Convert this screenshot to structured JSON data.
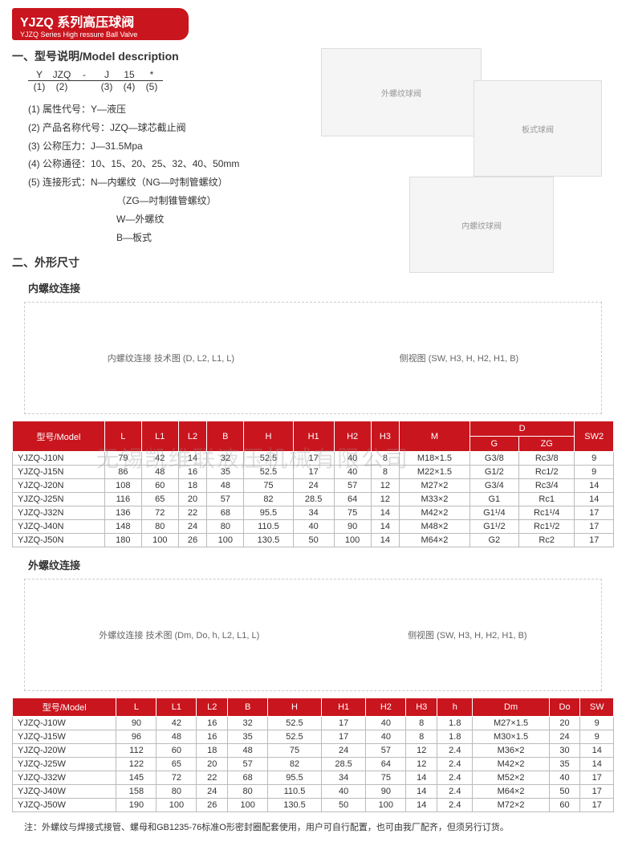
{
  "header": {
    "title_cn": "YJZQ 系列高压球阀",
    "title_en": "YJZQ Series High ressure Ball Valve"
  },
  "section1": {
    "title": "一、型号说明/Model description",
    "code_top": [
      "Y",
      "JZQ",
      "-",
      "J",
      "15",
      "*"
    ],
    "code_bot": [
      "(1)",
      "(2)",
      "",
      "(3)",
      "(4)",
      "(5)"
    ],
    "desc": [
      "(1) 属性代号：Y—液压",
      "(2) 产品名称代号：JZQ—球芯截止阀",
      "(3) 公称压力：J—31.5Mpa",
      "(4) 公称通径：10、15、20、25、32、40、50mm",
      "(5) 连接形式：N—内螺纹（NG—吋制管螺纹）"
    ],
    "desc_indent": [
      "（ZG—吋制锥管螺纹）",
      "W—外螺纹",
      "B—板式"
    ]
  },
  "section2": {
    "title": "二、外形尺寸",
    "sub1": "内螺纹连接",
    "sub2": "外螺纹连接"
  },
  "watermark": "无锡凯维联液压机械有限公司",
  "diagram_labels": {
    "d1": "内螺纹连接 技术图 (D, L2, L1, L)",
    "d2": "侧视图 (SW, H3, H, H2, H1, B)",
    "d3": "外螺纹连接 技术图 (Dm, Do, h, L2, L1, L)",
    "d4": "侧视图 (SW, H3, H, H2, H1, B)"
  },
  "table1": {
    "headers_top": [
      "型号/Model",
      "L",
      "L1",
      "L2",
      "B",
      "H",
      "H1",
      "H2",
      "H3",
      "M",
      "D",
      "SW2"
    ],
    "headers_sub_d": [
      "G",
      "ZG"
    ],
    "rows": [
      [
        "YJZQ-J10N",
        "79",
        "42",
        "14",
        "32",
        "52.5",
        "17",
        "40",
        "8",
        "M18×1.5",
        "G3/8",
        "Rc3/8",
        "9"
      ],
      [
        "YJZQ-J15N",
        "86",
        "48",
        "16",
        "35",
        "52.5",
        "17",
        "40",
        "8",
        "M22×1.5",
        "G1/2",
        "Rc1/2",
        "9"
      ],
      [
        "YJZQ-J20N",
        "108",
        "60",
        "18",
        "48",
        "75",
        "24",
        "57",
        "12",
        "M27×2",
        "G3/4",
        "Rc3/4",
        "14"
      ],
      [
        "YJZQ-J25N",
        "116",
        "65",
        "20",
        "57",
        "82",
        "28.5",
        "64",
        "12",
        "M33×2",
        "G1",
        "Rc1",
        "14"
      ],
      [
        "YJZQ-J32N",
        "136",
        "72",
        "22",
        "68",
        "95.5",
        "34",
        "75",
        "14",
        "M42×2",
        "G1¹/4",
        "Rc1¹/4",
        "17"
      ],
      [
        "YJZQ-J40N",
        "148",
        "80",
        "24",
        "80",
        "110.5",
        "40",
        "90",
        "14",
        "M48×2",
        "G1¹/2",
        "Rc1¹/2",
        "17"
      ],
      [
        "YJZQ-J50N",
        "180",
        "100",
        "26",
        "100",
        "130.5",
        "50",
        "100",
        "14",
        "M64×2",
        "G2",
        "Rc2",
        "17"
      ]
    ]
  },
  "table2": {
    "headers": [
      "型号/Model",
      "L",
      "L1",
      "L2",
      "B",
      "H",
      "H1",
      "H2",
      "H3",
      "h",
      "Dm",
      "Do",
      "SW"
    ],
    "rows": [
      [
        "YJZQ-J10W",
        "90",
        "42",
        "16",
        "32",
        "52.5",
        "17",
        "40",
        "8",
        "1.8",
        "M27×1.5",
        "20",
        "9"
      ],
      [
        "YJZQ-J15W",
        "96",
        "48",
        "16",
        "35",
        "52.5",
        "17",
        "40",
        "8",
        "1.8",
        "M30×1.5",
        "24",
        "9"
      ],
      [
        "YJZQ-J20W",
        "112",
        "60",
        "18",
        "48",
        "75",
        "24",
        "57",
        "12",
        "2.4",
        "M36×2",
        "30",
        "14"
      ],
      [
        "YJZQ-J25W",
        "122",
        "65",
        "20",
        "57",
        "82",
        "28.5",
        "64",
        "12",
        "2.4",
        "M42×2",
        "35",
        "14"
      ],
      [
        "YJZQ-J32W",
        "145",
        "72",
        "22",
        "68",
        "95.5",
        "34",
        "75",
        "14",
        "2.4",
        "M52×2",
        "40",
        "17"
      ],
      [
        "YJZQ-J40W",
        "158",
        "80",
        "24",
        "80",
        "110.5",
        "40",
        "90",
        "14",
        "2.4",
        "M64×2",
        "50",
        "17"
      ],
      [
        "YJZQ-J50W",
        "190",
        "100",
        "26",
        "100",
        "130.5",
        "50",
        "100",
        "14",
        "2.4",
        "M72×2",
        "60",
        "17"
      ]
    ]
  },
  "footnote": "注：外螺纹与焊接式接管、螺母和GB1235-76标准O形密封圈配套使用，用户可自行配置，也可由我厂配齐，但须另行订货。",
  "colors": {
    "brand_red": "#c9151e",
    "border_gray": "#bbbbbb",
    "text": "#333333"
  }
}
